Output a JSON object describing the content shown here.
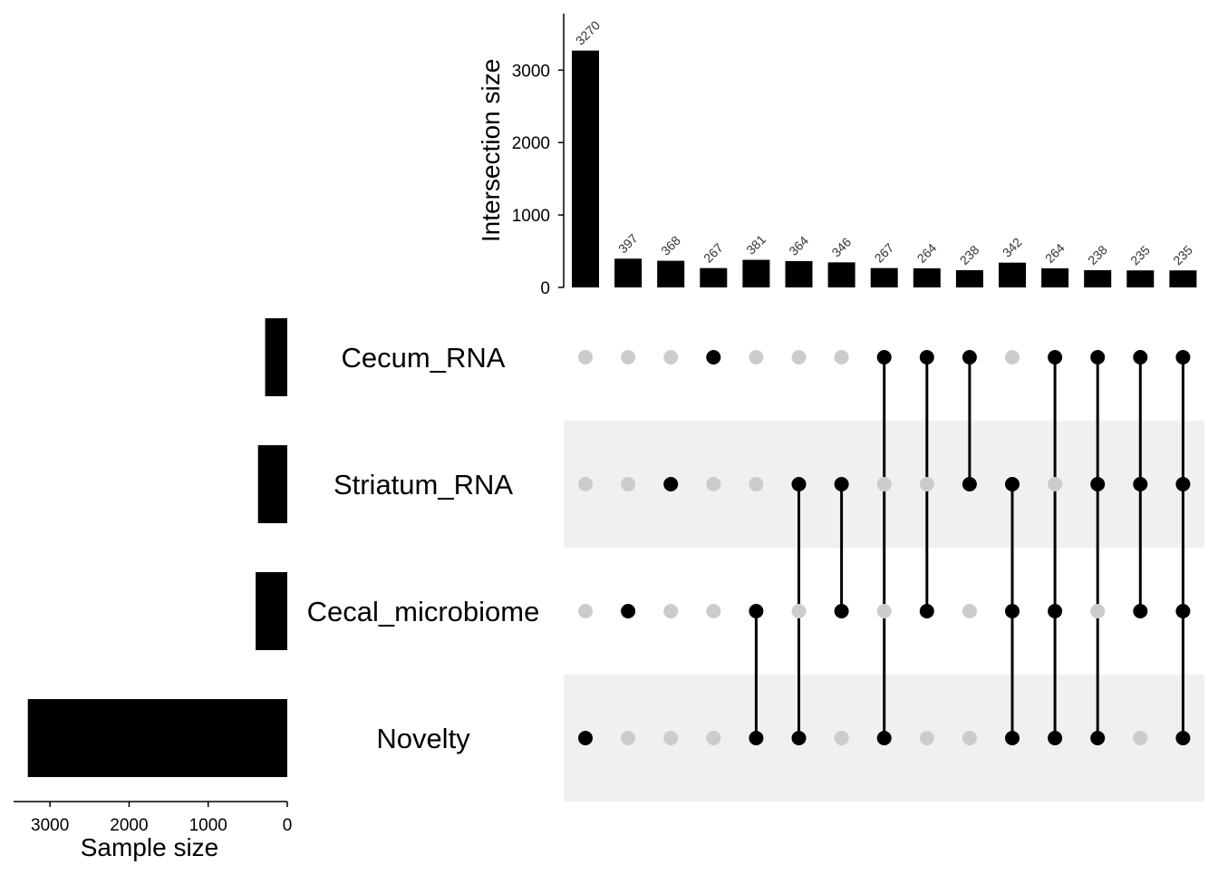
{
  "chart_data": {
    "type": "upset",
    "sets": [
      "Cecum_RNA",
      "Striatum_RNA",
      "Cecal_microbiome",
      "Novelty"
    ],
    "set_sizes": [
      280,
      370,
      400,
      3280
    ],
    "intersections": [
      {
        "size": 3270,
        "size_label": "3270",
        "members": [
          "Novelty"
        ]
      },
      {
        "size": 397,
        "size_label": "397",
        "members": [
          "Cecal_microbiome"
        ]
      },
      {
        "size": 368,
        "size_label": "368",
        "members": [
          "Striatum_RNA"
        ]
      },
      {
        "size": 267,
        "size_label": "267",
        "members": [
          "Cecum_RNA"
        ]
      },
      {
        "size": 381,
        "size_label": "381",
        "members": [
          "Cecal_microbiome",
          "Novelty"
        ]
      },
      {
        "size": 364,
        "size_label": "364",
        "members": [
          "Striatum_RNA",
          "Novelty"
        ]
      },
      {
        "size": 346,
        "size_label": "346",
        "members": [
          "Striatum_RNA",
          "Cecal_microbiome"
        ]
      },
      {
        "size": 267,
        "size_label": "267",
        "members": [
          "Cecum_RNA",
          "Novelty"
        ]
      },
      {
        "size": 264,
        "size_label": "264",
        "members": [
          "Cecum_RNA",
          "Cecal_microbiome"
        ]
      },
      {
        "size": 238,
        "size_label": "238",
        "members": [
          "Cecum_RNA",
          "Striatum_RNA"
        ]
      },
      {
        "size": 342,
        "size_label": "342",
        "members": [
          "Striatum_RNA",
          "Cecal_microbiome",
          "Novelty"
        ]
      },
      {
        "size": 264,
        "size_label": "264",
        "members": [
          "Cecum_RNA",
          "Cecal_microbiome",
          "Novelty"
        ]
      },
      {
        "size": 238,
        "size_label": "238",
        "members": [
          "Cecum_RNA",
          "Striatum_RNA",
          "Novelty"
        ]
      },
      {
        "size": 235,
        "size_label": "235",
        "members": [
          "Cecum_RNA",
          "Striatum_RNA",
          "Cecal_microbiome"
        ]
      },
      {
        "size": 235,
        "size_label": "235",
        "members": [
          "Cecum_RNA",
          "Striatum_RNA",
          "Cecal_microbiome",
          "Novelty"
        ]
      }
    ],
    "intersection_axis": {
      "label": "Intersection size",
      "ylim": [
        0,
        3780
      ],
      "ticks": [
        0,
        1000,
        2000,
        3000
      ],
      "tick_labels": [
        "0",
        "1000",
        "2000",
        "3000"
      ]
    },
    "set_size_axis": {
      "label": "Sample size",
      "xlim": [
        0,
        3460
      ],
      "reversed": true,
      "ticks": [
        3000,
        2000,
        1000,
        0
      ],
      "tick_labels": [
        "3000",
        "2000",
        "1000",
        "0"
      ]
    },
    "colors": {
      "bar": "#000000",
      "dot_active": "#000000",
      "dot_inactive": "#cccccc",
      "stripe": "#f0f0f0",
      "count_label": "#333333"
    }
  }
}
